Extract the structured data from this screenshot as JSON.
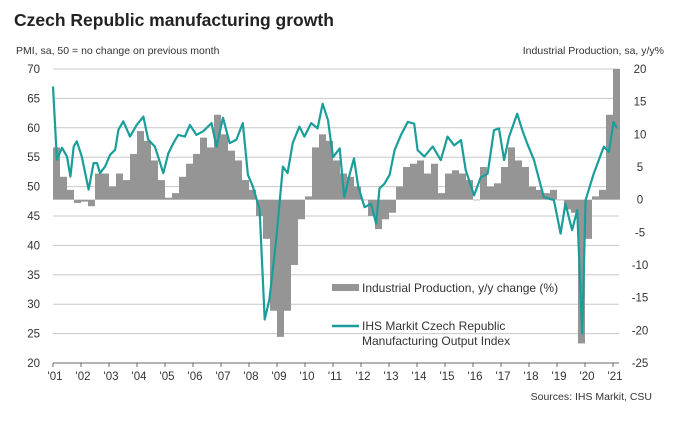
{
  "title": "Czech Republic manufacturing growth",
  "left_axis_label": "PMI, sa, 50 = no change on previous month",
  "right_axis_label": "Industrial Production, sa, y/y%",
  "source": "Sources: IHS Markit, CSU",
  "colors": {
    "bars": "#959595",
    "line": "#1a9e9a",
    "grid": "#c8c8c8"
  },
  "chart_data": {
    "type": "bar+line",
    "title": "Czech Republic manufacturing growth",
    "xlim": [
      2001,
      2021.2
    ],
    "x_ticks": [
      {
        "year": 2001,
        "label": "'01"
      },
      {
        "year": 2002,
        "label": "'02"
      },
      {
        "year": 2003,
        "label": "'03"
      },
      {
        "year": 2004,
        "label": "'04"
      },
      {
        "year": 2005,
        "label": "'05"
      },
      {
        "year": 2006,
        "label": "'06"
      },
      {
        "year": 2007,
        "label": "'07"
      },
      {
        "year": 2008,
        "label": "'08"
      },
      {
        "year": 2009,
        "label": "'09"
      },
      {
        "year": 2010,
        "label": "'10"
      },
      {
        "year": 2011,
        "label": "'11"
      },
      {
        "year": 2012,
        "label": "'12"
      },
      {
        "year": 2013,
        "label": "'13"
      },
      {
        "year": 2014,
        "label": "'14"
      },
      {
        "year": 2015,
        "label": "'15"
      },
      {
        "year": 2016,
        "label": "'16"
      },
      {
        "year": 2017,
        "label": "'17"
      },
      {
        "year": 2018,
        "label": "'18"
      },
      {
        "year": 2019,
        "label": "'19"
      },
      {
        "year": 2020,
        "label": "'20"
      },
      {
        "year": 2021,
        "label": "'21"
      }
    ],
    "left_axis": {
      "ylim": [
        20,
        70
      ],
      "ticks": [
        "20",
        "25",
        "30",
        "35",
        "40",
        "45",
        "50",
        "55",
        "60",
        "65",
        "70"
      ]
    },
    "right_axis": {
      "ylim": [
        -25,
        20
      ],
      "ticks": [
        "-25",
        "-20",
        "-15",
        "-10",
        "-5",
        "0",
        "5",
        "10",
        "15",
        "20"
      ]
    },
    "legend": {
      "placement": "bottom-center",
      "bar_label": "Industrial Production, y/y change (%)",
      "line_label_1": "IHS Markit Czech Republic",
      "line_label_2": "Manufacturing Output Index"
    },
    "series": [
      {
        "name": "Industrial Production, y/y change (%)",
        "axis": "right",
        "kind": "bar",
        "start": 2001.0,
        "step": 0.25,
        "values": [
          8,
          3.5,
          1.5,
          -0.5,
          -0.3,
          -1,
          4,
          4,
          2,
          4,
          3,
          7,
          10.5,
          9,
          6,
          3,
          0.3,
          1,
          3.5,
          5.5,
          7,
          9.5,
          8,
          13,
          10,
          7.5,
          6,
          3,
          1.5,
          -2.5,
          -6,
          -17,
          -21,
          -17,
          -10,
          -3,
          0.5,
          8,
          10,
          9,
          6,
          4,
          3.5,
          2,
          0,
          -2.5,
          -4.5,
          -3,
          -2,
          2,
          5,
          5.5,
          6,
          4,
          5.5,
          1,
          4,
          4.5,
          4,
          3,
          0,
          5,
          2,
          2.5,
          5,
          8,
          6,
          5,
          2,
          1.5,
          1,
          1.5,
          0,
          -1.5,
          -2,
          -22,
          -6,
          0.5,
          1.5,
          13,
          20
        ]
      },
      {
        "name": "IHS Markit Czech Republic Manufacturing Output Index",
        "axis": "left",
        "kind": "line",
        "points": [
          [
            2001.0,
            67
          ],
          [
            2001.14,
            54.6
          ],
          [
            2001.32,
            56.6
          ],
          [
            2001.5,
            55.1
          ],
          [
            2001.62,
            51.7
          ],
          [
            2001.74,
            56.8
          ],
          [
            2001.85,
            57.7
          ],
          [
            2002.03,
            55.1
          ],
          [
            2002.15,
            52.3
          ],
          [
            2002.27,
            49.5
          ],
          [
            2002.45,
            54
          ],
          [
            2002.57,
            54
          ],
          [
            2002.68,
            52.3
          ],
          [
            2002.86,
            53.4
          ],
          [
            2003.04,
            55.4
          ],
          [
            2003.22,
            56.3
          ],
          [
            2003.34,
            59.7
          ],
          [
            2003.51,
            61.1
          ],
          [
            2003.75,
            58.5
          ],
          [
            2003.99,
            60.5
          ],
          [
            2004.23,
            61.9
          ],
          [
            2004.4,
            58
          ],
          [
            2004.64,
            56.8
          ],
          [
            2004.94,
            52.3
          ],
          [
            2005.12,
            55.7
          ],
          [
            2005.3,
            57.4
          ],
          [
            2005.47,
            58.8
          ],
          [
            2005.71,
            58.5
          ],
          [
            2005.89,
            60.5
          ],
          [
            2006.12,
            58.8
          ],
          [
            2006.36,
            59.4
          ],
          [
            2006.66,
            60.8
          ],
          [
            2006.84,
            56.8
          ],
          [
            2007.07,
            61.7
          ],
          [
            2007.31,
            57.4
          ],
          [
            2007.55,
            58
          ],
          [
            2007.78,
            60.8
          ],
          [
            2007.96,
            52
          ],
          [
            2008.14,
            50
          ],
          [
            2008.38,
            46.1
          ],
          [
            2008.56,
            27.4
          ],
          [
            2008.73,
            30.8
          ],
          [
            2008.97,
            41
          ],
          [
            2009.21,
            53.4
          ],
          [
            2009.38,
            52.3
          ],
          [
            2009.56,
            57.4
          ],
          [
            2009.8,
            60.2
          ],
          [
            2009.98,
            58.5
          ],
          [
            2010.22,
            60.8
          ],
          [
            2010.45,
            59.9
          ],
          [
            2010.63,
            64.1
          ],
          [
            2010.82,
            61.3
          ],
          [
            2011.0,
            55
          ],
          [
            2011.24,
            56.5
          ],
          [
            2011.4,
            48.2
          ],
          [
            2011.6,
            52.2
          ],
          [
            2011.75,
            54.8
          ],
          [
            2011.9,
            50
          ],
          [
            2012.13,
            46.5
          ],
          [
            2012.36,
            47.1
          ],
          [
            2012.54,
            43.7
          ],
          [
            2012.66,
            49.7
          ],
          [
            2012.84,
            50.5
          ],
          [
            2013.02,
            52
          ],
          [
            2013.2,
            56.2
          ],
          [
            2013.43,
            58.8
          ],
          [
            2013.67,
            61
          ],
          [
            2013.9,
            60.7
          ],
          [
            2014.02,
            56.2
          ],
          [
            2014.26,
            55.1
          ],
          [
            2014.56,
            56.8
          ],
          [
            2014.85,
            54.5
          ],
          [
            2015.09,
            58.5
          ],
          [
            2015.33,
            57
          ],
          [
            2015.57,
            57.9
          ],
          [
            2015.74,
            52.8
          ],
          [
            2016.04,
            48.5
          ],
          [
            2016.28,
            51.6
          ],
          [
            2016.52,
            52.2
          ],
          [
            2016.75,
            59.6
          ],
          [
            2016.93,
            59.9
          ],
          [
            2017.11,
            54.5
          ],
          [
            2017.29,
            58.5
          ],
          [
            2017.58,
            62.4
          ],
          [
            2017.76,
            59.6
          ],
          [
            2017.94,
            57.3
          ],
          [
            2018.18,
            54.5
          ],
          [
            2018.53,
            48.2
          ],
          [
            2018.89,
            47.7
          ],
          [
            2019.13,
            42
          ],
          [
            2019.3,
            47.1
          ],
          [
            2019.54,
            42.6
          ],
          [
            2019.72,
            46
          ],
          [
            2019.9,
            25
          ],
          [
            2020.02,
            47.7
          ],
          [
            2020.31,
            52.2
          ],
          [
            2020.67,
            56.8
          ],
          [
            2020.85,
            55.9
          ],
          [
            2021.02,
            61
          ],
          [
            2021.14,
            59.9
          ]
        ]
      }
    ]
  }
}
